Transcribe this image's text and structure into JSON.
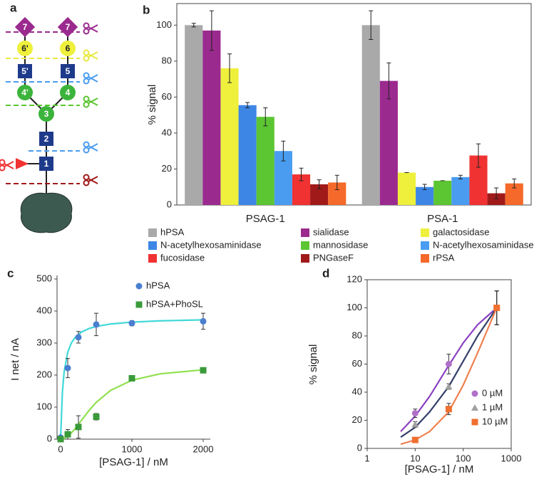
{
  "diagram": {
    "label": "a",
    "nodes": [
      {
        "label": "7"
      },
      {
        "label": "7"
      },
      {
        "label": "6'"
      },
      {
        "label": "6"
      },
      {
        "label": "5'"
      },
      {
        "label": "5"
      },
      {
        "label": "4'"
      },
      {
        "label": "4"
      },
      {
        "label": "3"
      },
      {
        "label": "2"
      },
      {
        "label": "1"
      }
    ]
  },
  "chart_data": [
    {
      "panel": "b",
      "type": "bar",
      "ylabel": "% signal",
      "categories": [
        "PSAG-1",
        "PSA-1"
      ],
      "ylim": [
        0,
        112
      ],
      "yticks": [
        0,
        20,
        40,
        60,
        80,
        100
      ],
      "legend": "below",
      "series": [
        {
          "name": "hPSA",
          "color": "#a9a9a9",
          "values": [
            100,
            100
          ],
          "errors": [
            1,
            8
          ]
        },
        {
          "name": "sialidase",
          "color": "#9b2a8f",
          "values": [
            97,
            69
          ],
          "errors": [
            11,
            10
          ]
        },
        {
          "name": "galactosidase",
          "color": "#eef03c",
          "values": [
            76,
            18
          ],
          "errors": [
            8,
            0
          ]
        },
        {
          "name": "N-acetylhexosaminidase",
          "color": "#3d86e6",
          "values": [
            55.5,
            10
          ],
          "errors": [
            1.5,
            1.5
          ]
        },
        {
          "name": "mannosidase",
          "color": "#5cc532",
          "values": [
            49,
            13.5
          ],
          "errors": [
            5,
            0
          ]
        },
        {
          "name": "N-acetylhexosaminidase",
          "color": "#4a9cf0",
          "values": [
            30,
            15.5
          ],
          "errors": [
            5.5,
            1
          ]
        },
        {
          "name": "fucosidase",
          "color": "#f03232",
          "values": [
            17,
            27.5
          ],
          "errors": [
            3.5,
            6.5
          ]
        },
        {
          "name": "PNGaseF",
          "color": "#a01a1a",
          "values": [
            11.5,
            6.5
          ],
          "errors": [
            2.5,
            3
          ]
        },
        {
          "name": "rPSA",
          "color": "#f5692a",
          "values": [
            12.5,
            12
          ],
          "errors": [
            4,
            2.5
          ]
        }
      ]
    },
    {
      "panel": "c",
      "type": "scatter",
      "xlabel": "[PSAG-1] / nM",
      "ylabel": "I net / nA",
      "xlim": [
        -50,
        2100
      ],
      "xticks": [
        0,
        1000,
        2000
      ],
      "ylim": [
        0,
        500
      ],
      "yticks": [
        0,
        100,
        200,
        300,
        400,
        500
      ],
      "legend": "upper right",
      "series": [
        {
          "name": "hPSA",
          "color": "#4a7fd0",
          "marker": "circle",
          "x": [
            0,
            100,
            250,
            500,
            1000,
            2000
          ],
          "values": [
            5,
            222,
            318,
            358,
            362,
            368
          ],
          "errors": [
            0,
            30,
            18,
            35,
            8,
            25
          ],
          "fit": {
            "color": "#40d8d8",
            "x": [
              0,
              25,
              50,
              100,
              150,
              200,
              300,
              400,
              500,
              700,
              1000,
              1400,
              2000
            ],
            "values": [
              0,
              146.2,
              211.1,
              271.4,
              300,
              316.7,
              335.3,
              345.5,
              351.9,
              359.5,
              365.4,
              369.4,
              372.5
            ]
          }
        },
        {
          "name": "hPSA+PhoSL",
          "color": "#3a9a3a",
          "marker": "square",
          "x": [
            0,
            100,
            250,
            500,
            1000,
            2000
          ],
          "values": [
            0,
            15,
            38,
            70,
            190,
            215
          ],
          "errors": [
            0,
            15,
            35,
            10,
            5,
            3
          ],
          "fit": {
            "color": "#90e050",
            "x": [
              0,
              25,
              50,
              100,
              150,
              200,
              300,
              400,
              500,
              700,
              1000,
              1400,
              2000
            ],
            "values": [
              0,
              0.6,
              2.3,
              8.8,
              18.9,
              31.7,
              60.9,
              89.8,
              115,
              152.2,
              184,
              204,
              216.5
            ]
          }
        }
      ]
    },
    {
      "panel": "d",
      "type": "scatter",
      "xscale": "log",
      "xlabel": "[PSAG-1] / nM",
      "ylabel": "% signal",
      "xlim": [
        1,
        1000
      ],
      "xticks": [
        1,
        10,
        100,
        1000
      ],
      "ylim": [
        0,
        120
      ],
      "yticks": [
        0,
        20,
        40,
        60,
        80,
        100,
        120
      ],
      "legend": "lower right",
      "series": [
        {
          "name": "0 µM",
          "color": "#b070c8",
          "marker": "circle",
          "x": [
            10,
            50,
            500
          ],
          "values": [
            25,
            60,
            100
          ],
          "errors": [
            3,
            7,
            12
          ],
          "fit": {
            "color": "#8a3fc0",
            "x": [
              5,
              10,
              20,
              50,
              100,
              200,
              500
            ],
            "values": [
              12,
              23,
              37,
              59,
              75,
              88,
              100
            ]
          }
        },
        {
          "name": "1 µM",
          "color": "#a0a0a0",
          "marker": "triangle",
          "x": [
            10,
            50,
            500
          ],
          "values": [
            17,
            44,
            100
          ],
          "errors": [
            2,
            2,
            12
          ],
          "fit": {
            "color": "#34406a",
            "x": [
              5,
              10,
              20,
              50,
              100,
              200,
              500
            ],
            "values": [
              8,
              15,
              26,
              44,
              62,
              80,
              100
            ]
          }
        },
        {
          "name": "10 µM",
          "color": "#f07030",
          "marker": "square",
          "x": [
            10,
            50,
            500
          ],
          "values": [
            6,
            28,
            100
          ],
          "errors": [
            1,
            4,
            12
          ],
          "fit": {
            "color": "#f08050",
            "x": [
              5,
              10,
              20,
              50,
              100,
              200,
              500
            ],
            "values": [
              3,
              6,
              12,
              26,
              45,
              68,
              100
            ]
          }
        }
      ]
    }
  ]
}
